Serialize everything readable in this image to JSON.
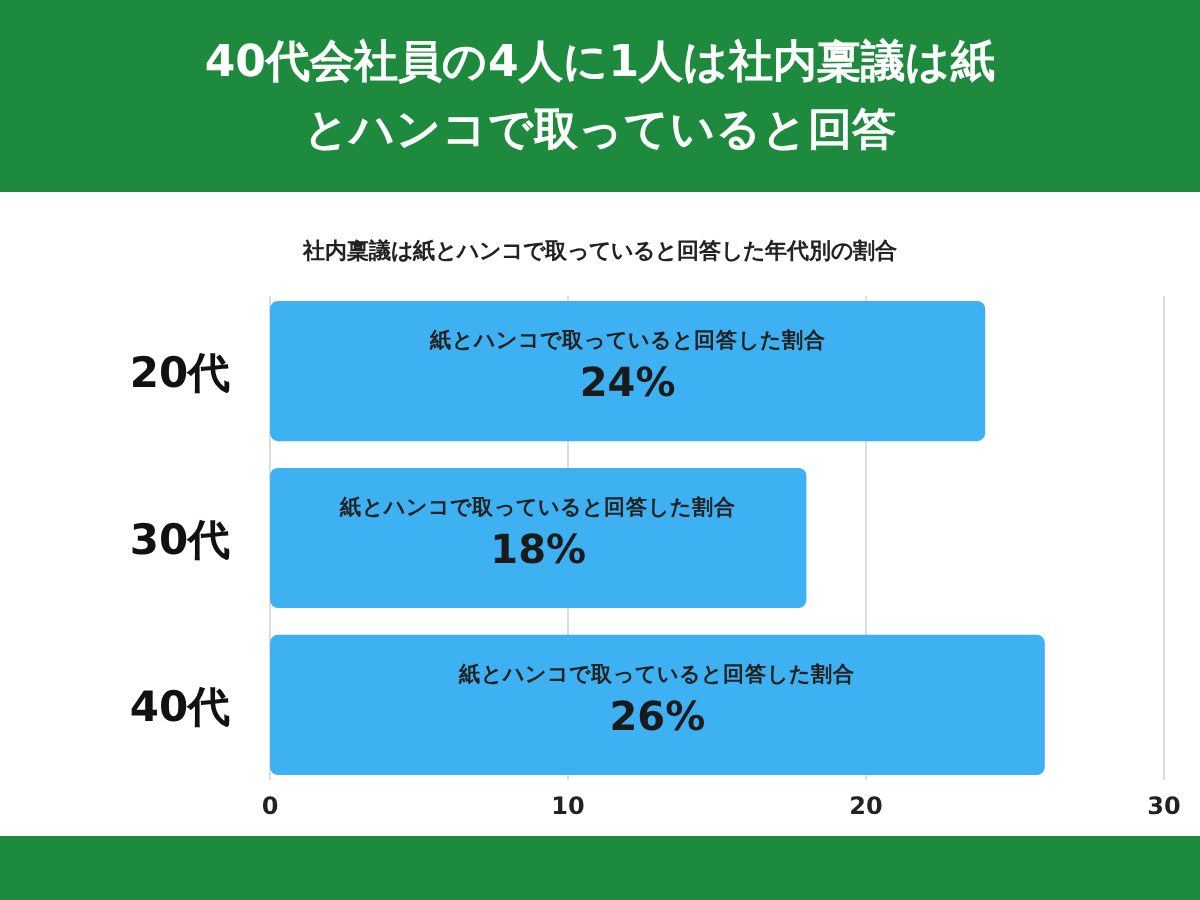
{
  "chart_data": {
    "type": "bar",
    "orientation": "horizontal",
    "title": "40代会社員の4人に1人は社内稟議は紙とハンコで取っていると回答",
    "subtitle": "社内稟議は紙とハンコで取っていると回答した年代別の割合",
    "categories": [
      "20代",
      "30代",
      "40代"
    ],
    "values": [
      24,
      18,
      26
    ],
    "color": "#3db1f2",
    "value_labels": [
      "24%",
      "18%",
      "26%"
    ],
    "annotations": [
      "紙とハンコで取っていると回答した割合",
      "紙とハンコで取っていると回答した割合",
      "紙とハンコで取っていると回答した割合"
    ],
    "xlim": [
      0,
      30
    ],
    "xticks": [
      0,
      10,
      20,
      30
    ],
    "grid": "x"
  }
}
